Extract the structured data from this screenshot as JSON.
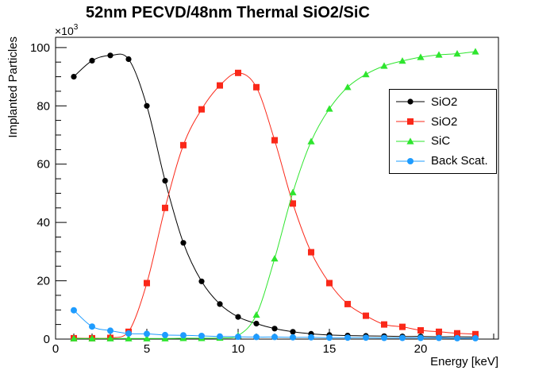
{
  "chart_data": {
    "type": "line",
    "title": "52nm PECVD/48nm Thermal SiO2/SiC",
    "xlabel": "Energy [keV]",
    "ylabel": "Implanted Particles",
    "y_multiplier_base": "×10",
    "y_multiplier_exp": "3",
    "values_unit": "thousands of particles",
    "xlim": [
      0,
      24.26
    ],
    "ylim": [
      0,
      103.5
    ],
    "x_major_ticks": [
      0,
      5,
      10,
      15,
      20
    ],
    "x_minor_step": 1,
    "y_major_ticks": [
      0,
      20,
      40,
      60,
      80,
      100
    ],
    "y_minor_step": 5,
    "grid": false,
    "legend_position": "right-middle",
    "x": [
      1,
      2,
      3,
      4,
      5,
      6,
      7,
      8,
      9,
      10,
      11,
      12,
      13,
      14,
      15,
      16,
      17,
      18,
      19,
      20,
      21,
      22,
      23
    ],
    "series": [
      {
        "name": "SiO2",
        "marker": "circle",
        "color": "#000000",
        "values": [
          90.0,
          95.5,
          97.3,
          96.0,
          80.0,
          54.3,
          33.0,
          19.8,
          12.0,
          7.6,
          5.3,
          3.6,
          2.5,
          1.8,
          1.4,
          1.2,
          1.1,
          1.0,
          0.9,
          0.9,
          0.8,
          0.8,
          0.7
        ]
      },
      {
        "name": "SiO2",
        "marker": "square",
        "color": "#fa2819",
        "values": [
          0.3,
          0.3,
          0.4,
          2.5,
          19.2,
          45.0,
          66.5,
          78.8,
          87.0,
          91.3,
          86.4,
          68.2,
          46.5,
          29.8,
          19.2,
          12.0,
          8.0,
          5.0,
          4.2,
          3.0,
          2.5,
          2.0,
          1.7
        ]
      },
      {
        "name": "SiC",
        "marker": "triangle",
        "color": "#2ee52e",
        "values": [
          0.2,
          0.2,
          0.2,
          0.2,
          0.2,
          0.2,
          0.3,
          0.3,
          0.4,
          1.2,
          8.3,
          27.6,
          50.3,
          67.8,
          79.0,
          86.4,
          90.8,
          93.7,
          95.4,
          96.7,
          97.5,
          97.9,
          98.6
        ]
      },
      {
        "name": "Back Scat.",
        "marker": "circle",
        "color": "#1e9cff",
        "values": [
          9.9,
          4.3,
          2.9,
          1.9,
          1.8,
          1.4,
          1.3,
          1.1,
          0.9,
          0.8,
          0.7,
          0.7,
          0.6,
          0.6,
          0.5,
          0.5,
          0.5,
          0.4,
          0.4,
          0.4,
          0.4,
          0.3,
          0.3
        ]
      }
    ]
  }
}
